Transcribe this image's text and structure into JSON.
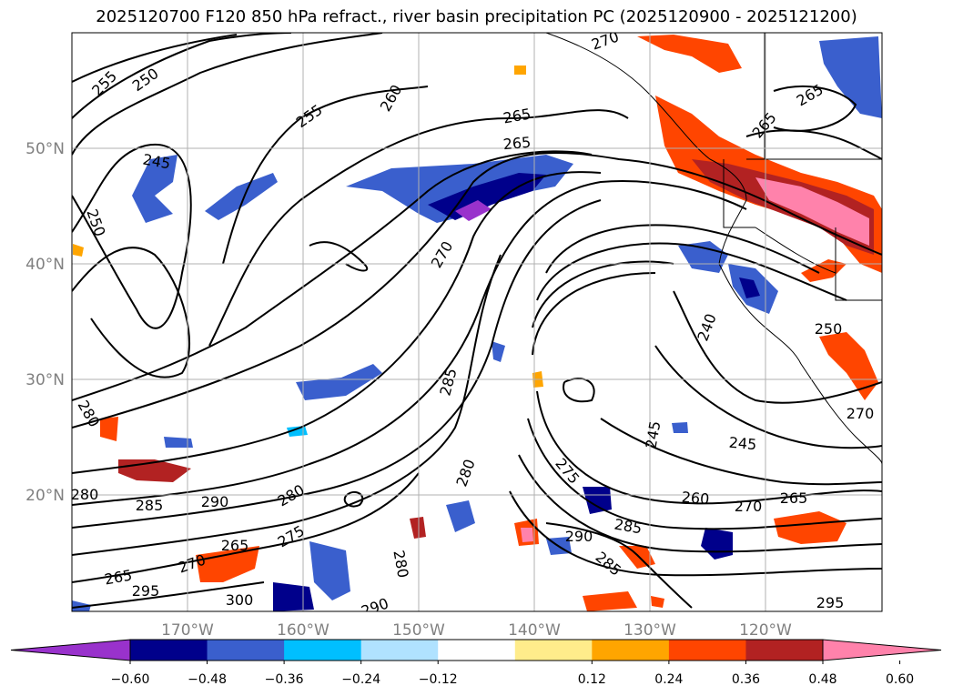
{
  "title": "2025120700 F120 850 hPa refract., river basin precipitation PC (2025120900 - 2025121200)",
  "axes": {
    "lon_ticks": [
      "170°W",
      "160°W",
      "150°W",
      "140°W",
      "130°W",
      "120°W"
    ],
    "lat_ticks": [
      "50°N",
      "40°N",
      "30°N",
      "20°N"
    ]
  },
  "colorbar": {
    "colors": [
      "#9932cc",
      "#00008b",
      "#3a5fcd",
      "#00bfff",
      "#b0e2ff",
      "#ffffff",
      "#ffec8b",
      "#ffa500",
      "#ff4500",
      "#b22222",
      "#ff82ab"
    ],
    "tick_labels": [
      "−0.60",
      "−0.48",
      "−0.36",
      "−0.24",
      "−0.12",
      "0.12",
      "0.24",
      "0.36",
      "0.48",
      "0.60"
    ]
  },
  "contour_labels": [
    "255",
    "250",
    "260",
    "255",
    "265",
    "265",
    "270",
    "245",
    "250",
    "270",
    "265",
    "265",
    "240",
    "250",
    "285",
    "280",
    "245",
    "245",
    "275",
    "280",
    "260",
    "270",
    "265",
    "290",
    "285",
    "280",
    "290",
    "285",
    "280",
    "265",
    "275",
    "270",
    "295",
    "265",
    "300",
    "280",
    "290",
    "285",
    "295",
    "270"
  ]
}
